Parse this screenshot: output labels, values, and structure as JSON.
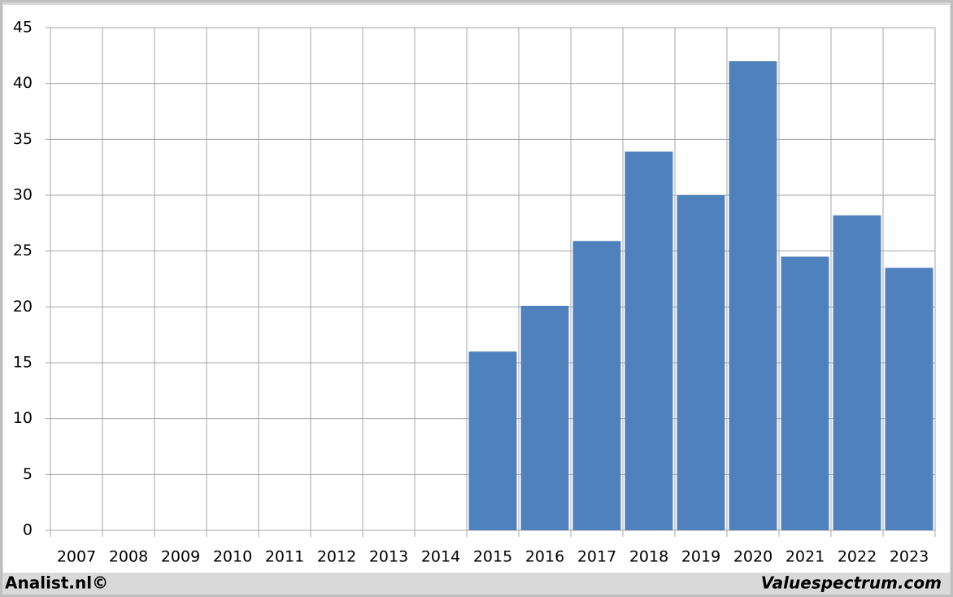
{
  "chart_data": {
    "type": "bar",
    "categories": [
      "2007",
      "2008",
      "2009",
      "2010",
      "2011",
      "2012",
      "2013",
      "2014",
      "2015",
      "2016",
      "2017",
      "2018",
      "2019",
      "2020",
      "2021",
      "2022",
      "2023"
    ],
    "values": [
      null,
      null,
      null,
      null,
      null,
      null,
      null,
      null,
      16,
      20.1,
      25.9,
      33.9,
      30,
      42,
      24.5,
      28.2,
      23.5
    ],
    "color": "#4f81bd",
    "ylim": [
      0,
      45
    ],
    "yticks": [
      0,
      5,
      10,
      15,
      20,
      25,
      30,
      35,
      40,
      45
    ],
    "grid": true,
    "source_left": "Analist.nl©",
    "source_right": "Valuespectrum.com"
  }
}
